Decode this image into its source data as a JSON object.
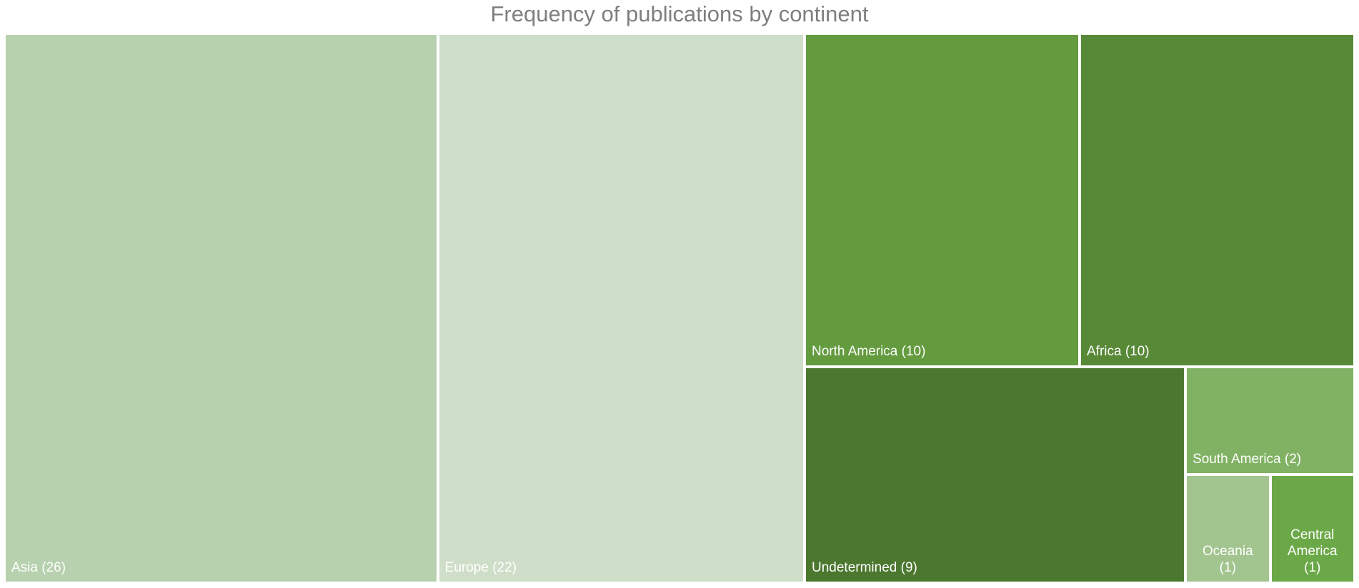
{
  "chart_data": {
    "type": "treemap",
    "title": "Frequency of publications by continent",
    "items": [
      {
        "name": "Asia",
        "value": 26,
        "label": "Asia (26)",
        "color": "#b7d1ae"
      },
      {
        "name": "Europe",
        "value": 22,
        "label": "Europe (22)",
        "color": "#cfdec8"
      },
      {
        "name": "North America",
        "value": 10,
        "label": "North America (10)",
        "color": "#639b3e"
      },
      {
        "name": "Africa",
        "value": 10,
        "label": "Africa (10)",
        "color": "#588937"
      },
      {
        "name": "Undetermined",
        "value": 9,
        "label": "Undetermined (9)",
        "color": "#4b772f"
      },
      {
        "name": "South America",
        "value": 2,
        "label": "South America (2)",
        "color": "#81b264"
      },
      {
        "name": "Oceania",
        "value": 1,
        "label": "Oceania\n(1)",
        "color": "#a2c48e"
      },
      {
        "name": "Central America",
        "value": 1,
        "label": "Central\nAmerica\n(1)",
        "color": "#6ba847"
      }
    ]
  }
}
